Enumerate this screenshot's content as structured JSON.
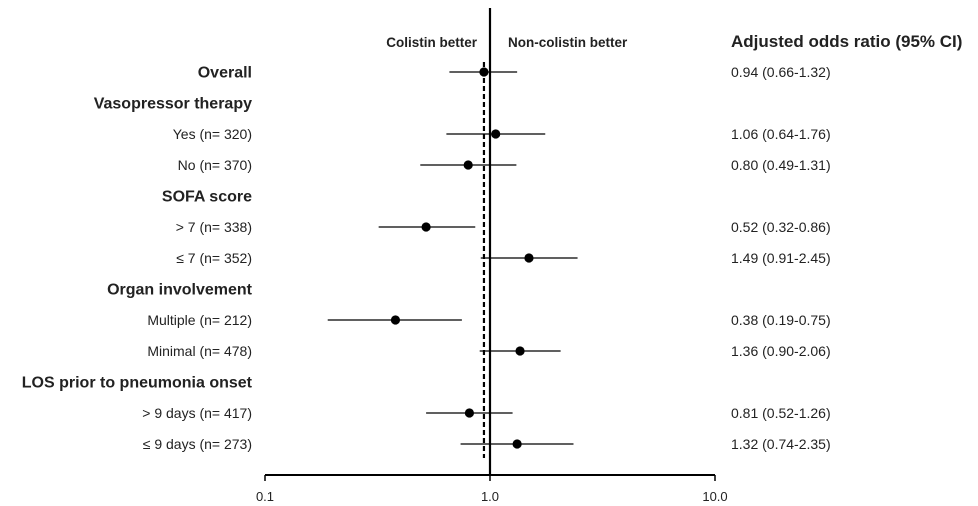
{
  "chart_data": {
    "type": "forest",
    "x_scale": "log",
    "xlim": [
      0.1,
      10.0
    ],
    "x_ticks": [
      "0.1",
      "1.0",
      "10.0"
    ],
    "reference_line": 1.0,
    "overall_line": 0.94,
    "direction_labels": {
      "left": "Colistin better",
      "right": "Non-colistin better"
    },
    "or_column_header": "Adjusted odds ratio (95% CI)",
    "rows": [
      {
        "label": "Overall",
        "kind": "group",
        "or": 0.94,
        "lo": 0.66,
        "hi": 1.32,
        "or_text": "0.94 (0.66-1.32)"
      },
      {
        "label": "Vasopressor therapy",
        "kind": "group"
      },
      {
        "label": "Yes (n= 320)",
        "kind": "sub",
        "or": 1.06,
        "lo": 0.64,
        "hi": 1.76,
        "or_text": "1.06 (0.64-1.76)"
      },
      {
        "label": "No (n= 370)",
        "kind": "sub",
        "or": 0.8,
        "lo": 0.49,
        "hi": 1.31,
        "or_text": "0.80 (0.49-1.31)"
      },
      {
        "label": "SOFA score",
        "kind": "group"
      },
      {
        "label": "> 7 (n= 338)",
        "kind": "sub",
        "or": 0.52,
        "lo": 0.32,
        "hi": 0.86,
        "or_text": "0.52 (0.32-0.86)"
      },
      {
        "label": "≤ 7 (n= 352)",
        "kind": "sub",
        "or": 1.49,
        "lo": 0.91,
        "hi": 2.45,
        "or_text": "1.49 (0.91-2.45)"
      },
      {
        "label": "Organ involvement",
        "kind": "group"
      },
      {
        "label": "Multiple (n= 212)",
        "kind": "sub",
        "or": 0.38,
        "lo": 0.19,
        "hi": 0.75,
        "or_text": "0.38 (0.19-0.75)"
      },
      {
        "label": "Minimal (n= 478)",
        "kind": "sub",
        "or": 1.36,
        "lo": 0.9,
        "hi": 2.06,
        "or_text": "1.36 (0.90-2.06)"
      },
      {
        "label": "LOS prior to pneumonia onset",
        "kind": "group"
      },
      {
        "label": "> 9 days (n= 417)",
        "kind": "sub",
        "or": 0.81,
        "lo": 0.52,
        "hi": 1.26,
        "or_text": "0.81 (0.52-1.26)"
      },
      {
        "label": "≤ 9 days (n= 273)",
        "kind": "sub",
        "or": 1.32,
        "lo": 0.74,
        "hi": 2.35,
        "or_text": "1.32 (0.74-2.35)"
      }
    ]
  }
}
